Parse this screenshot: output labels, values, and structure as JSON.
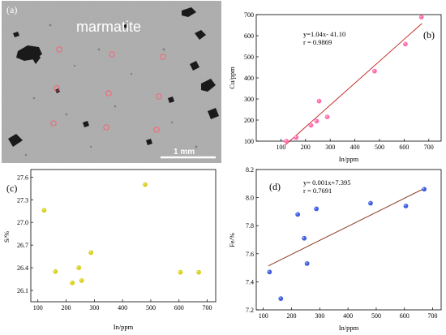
{
  "micrograph": {
    "label": "(a)",
    "mineral": "marmatite",
    "scale_bar": "1 mm",
    "spot_color": "#ff5a6e"
  },
  "chart_data": [
    {
      "id": "b",
      "type": "scatter",
      "label": "(b)",
      "xlabel": "In/ppm",
      "ylabel": "Cu/ppm",
      "xlim": [
        0,
        750
      ],
      "ylim": [
        100,
        700
      ],
      "xticks": [
        100,
        200,
        300,
        400,
        500,
        600,
        700
      ],
      "yticks": [
        100,
        200,
        300,
        400,
        500,
        600,
        700
      ],
      "marker_color": "#ff6fb0",
      "line_color": "#c0302a",
      "points": [
        {
          "x": 122,
          "y": 100
        },
        {
          "x": 162,
          "y": 117
        },
        {
          "x": 222,
          "y": 175
        },
        {
          "x": 245,
          "y": 195
        },
        {
          "x": 255,
          "y": 290
        },
        {
          "x": 288,
          "y": 215
        },
        {
          "x": 480,
          "y": 432
        },
        {
          "x": 605,
          "y": 560
        },
        {
          "x": 670,
          "y": 688
        }
      ],
      "fit": {
        "slope": 1.04,
        "intercept": -41.1,
        "x_range": [
          118,
          672
        ]
      },
      "annotations": [
        "y=1.04x- 41.10",
        "r = 0.9869"
      ]
    },
    {
      "id": "c",
      "type": "scatter",
      "label": "(c)",
      "xlabel": "In/ppm",
      "ylabel": "S/%",
      "xlim": [
        75,
        730
      ],
      "ylim": [
        25.95,
        27.7
      ],
      "xticks": [
        100,
        200,
        300,
        400,
        500,
        600,
        700
      ],
      "yticks": [
        26.1,
        26.4,
        26.7,
        27.0,
        27.3,
        27.6
      ],
      "ytick_labels": [
        "26.1",
        "26.4",
        "26.7",
        "27.0",
        "27.3",
        "27.6"
      ],
      "marker_color": "#d9d21c",
      "points": [
        {
          "x": 122,
          "y": 27.16
        },
        {
          "x": 162,
          "y": 26.35
        },
        {
          "x": 222,
          "y": 26.2
        },
        {
          "x": 245,
          "y": 26.4
        },
        {
          "x": 255,
          "y": 26.23
        },
        {
          "x": 288,
          "y": 26.6
        },
        {
          "x": 480,
          "y": 27.5
        },
        {
          "x": 605,
          "y": 26.34
        },
        {
          "x": 670,
          "y": 26.34
        }
      ]
    },
    {
      "id": "d",
      "type": "scatter",
      "label": "(d)",
      "xlabel": "In/ppm",
      "ylabel": "Fe/%",
      "xlim": [
        75,
        730
      ],
      "ylim": [
        7.2,
        8.2
      ],
      "xticks": [
        100,
        200,
        300,
        400,
        500,
        600,
        700
      ],
      "yticks": [
        7.2,
        7.4,
        7.6,
        7.8,
        8.0,
        8.2
      ],
      "ytick_labels": [
        "7.2",
        "7.4",
        "7.6",
        "7.8",
        "8.0",
        "8.2"
      ],
      "marker_color": "#3f5fe0",
      "line_color": "#8b3a1e",
      "points": [
        {
          "x": 122,
          "y": 7.47
        },
        {
          "x": 162,
          "y": 7.28
        },
        {
          "x": 222,
          "y": 7.88
        },
        {
          "x": 245,
          "y": 7.71
        },
        {
          "x": 255,
          "y": 7.53
        },
        {
          "x": 288,
          "y": 7.92
        },
        {
          "x": 480,
          "y": 7.96
        },
        {
          "x": 605,
          "y": 7.94
        },
        {
          "x": 670,
          "y": 8.06
        }
      ],
      "fit": {
        "slope": 0.001,
        "intercept": 7.395,
        "x_range": [
          118,
          672
        ]
      },
      "annotations": [
        "y= 0.001x+7.395",
        "r = 0.7691"
      ]
    }
  ]
}
